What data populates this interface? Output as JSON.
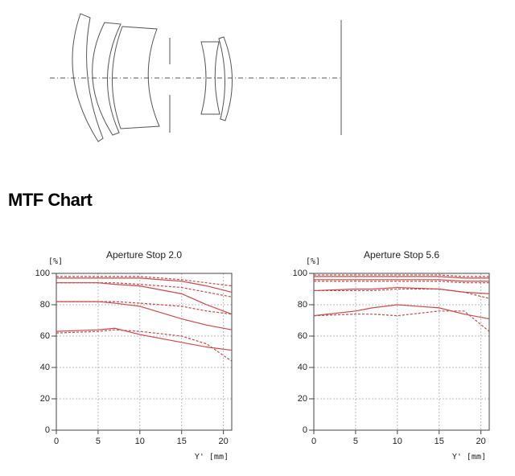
{
  "heading": "MTF Chart",
  "chart_data": [
    {
      "type": "line",
      "title": "Aperture Stop 2.0",
      "y_label": "[%]",
      "x_label": "Y' [mm]",
      "x": [
        0,
        5,
        7,
        10,
        15,
        18,
        21
      ],
      "xlim": [
        0,
        21
      ],
      "ylim": [
        0,
        100
      ],
      "xticks": [
        0,
        5,
        10,
        15,
        20
      ],
      "yticks": [
        0,
        20,
        40,
        60,
        80,
        100
      ],
      "grid": true,
      "series": [
        {
          "color": "#c84a4a",
          "dashed": false,
          "values": [
            97,
            97,
            97,
            97,
            95,
            92,
            88
          ]
        },
        {
          "color": "#c84a4a",
          "dashed": true,
          "values": [
            98,
            98,
            98,
            98,
            96,
            94,
            92
          ]
        },
        {
          "color": "#c84a4a",
          "dashed": false,
          "values": [
            94,
            94,
            93,
            92,
            87,
            80,
            74
          ]
        },
        {
          "color": "#c84a4a",
          "dashed": true,
          "values": [
            94,
            94,
            94,
            93,
            91,
            88,
            85
          ]
        },
        {
          "color": "#c84a4a",
          "dashed": false,
          "values": [
            82,
            82,
            81,
            79,
            71,
            67,
            64
          ]
        },
        {
          "color": "#c84a4a",
          "dashed": true,
          "values": [
            82,
            82,
            82,
            81,
            79,
            76,
            74
          ]
        },
        {
          "color": "#c84a4a",
          "dashed": false,
          "values": [
            63,
            64,
            65,
            61,
            56,
            53,
            51
          ]
        },
        {
          "color": "#c84a4a",
          "dashed": true,
          "values": [
            62,
            63,
            64,
            63,
            60,
            55,
            44
          ]
        }
      ]
    },
    {
      "type": "line",
      "title": "Aperture Stop 5.6",
      "y_label": "[%]",
      "x_label": "Y' [mm]",
      "x": [
        0,
        5,
        7,
        10,
        15,
        18,
        21
      ],
      "xlim": [
        0,
        21
      ],
      "ylim": [
        0,
        100
      ],
      "xticks": [
        0,
        5,
        10,
        15,
        20
      ],
      "yticks": [
        0,
        20,
        40,
        60,
        80,
        100
      ],
      "grid": true,
      "series": [
        {
          "color": "#c84a4a",
          "dashed": false,
          "values": [
            98,
            98,
            98,
            98,
            98,
            97,
            97
          ]
        },
        {
          "color": "#c84a4a",
          "dashed": true,
          "values": [
            99,
            99,
            99,
            99,
            99,
            98,
            98
          ]
        },
        {
          "color": "#c84a4a",
          "dashed": false,
          "values": [
            96,
            96,
            96,
            96,
            96,
            95,
            95
          ]
        },
        {
          "color": "#c84a4a",
          "dashed": true,
          "values": [
            95,
            95,
            95,
            95,
            95,
            94,
            94
          ]
        },
        {
          "color": "#c84a4a",
          "dashed": false,
          "values": [
            89,
            90,
            90,
            91,
            90,
            88,
            87
          ]
        },
        {
          "color": "#c84a4a",
          "dashed": true,
          "values": [
            89,
            89,
            89,
            90,
            90,
            88,
            84
          ]
        },
        {
          "color": "#c84a4a",
          "dashed": false,
          "values": [
            73,
            76,
            78,
            80,
            78,
            74,
            71
          ]
        },
        {
          "color": "#c84a4a",
          "dashed": true,
          "values": [
            73,
            74,
            74,
            73,
            76,
            76,
            63
          ]
        }
      ]
    }
  ]
}
